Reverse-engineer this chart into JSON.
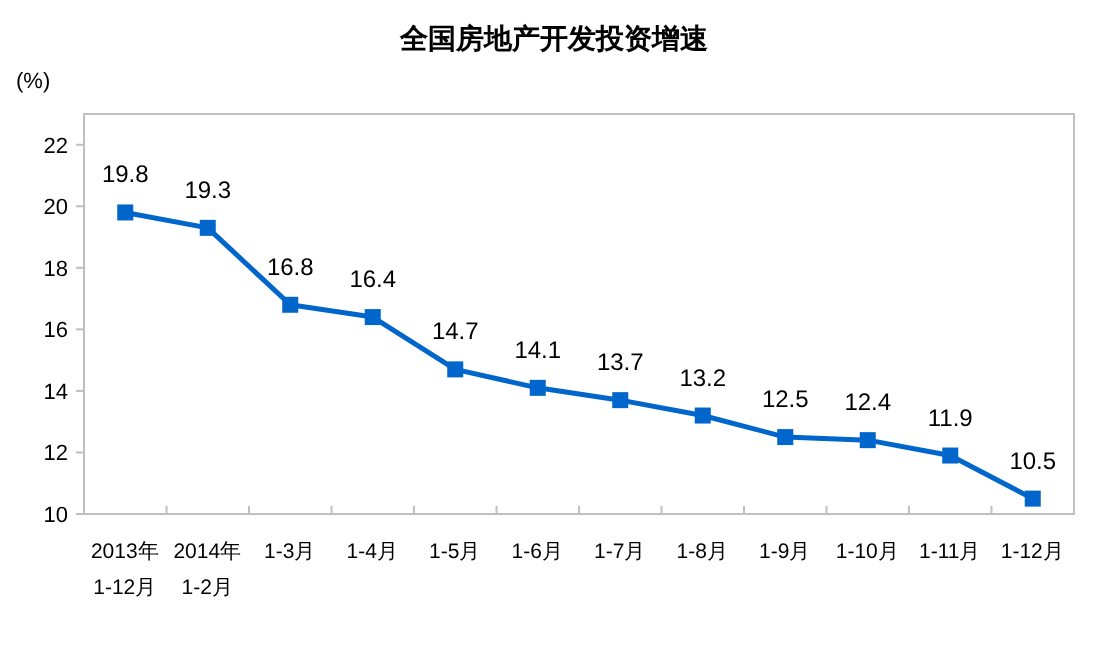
{
  "chart_data": {
    "type": "line",
    "title": "全国房地产开发投资增速",
    "ylabel": "(%)",
    "categories": [
      "2013年\n1-12月",
      "2014年\n1-2月",
      "1-3月",
      "1-4月",
      "1-5月",
      "1-6月",
      "1-7月",
      "1-8月",
      "1-9月",
      "1-10月",
      "1-11月",
      "1-12月"
    ],
    "series": [
      {
        "color": "#0066cc",
        "values": [
          19.8,
          19.3,
          16.8,
          16.4,
          14.7,
          14.1,
          13.7,
          13.2,
          12.5,
          12.4,
          11.9,
          10.5
        ]
      }
    ],
    "ylim": [
      10,
      23
    ],
    "yticks": [
      10,
      12,
      14,
      16,
      18,
      20,
      22
    ],
    "data_labels": true,
    "marker": "square",
    "line_style": "solid",
    "grid": false
  }
}
